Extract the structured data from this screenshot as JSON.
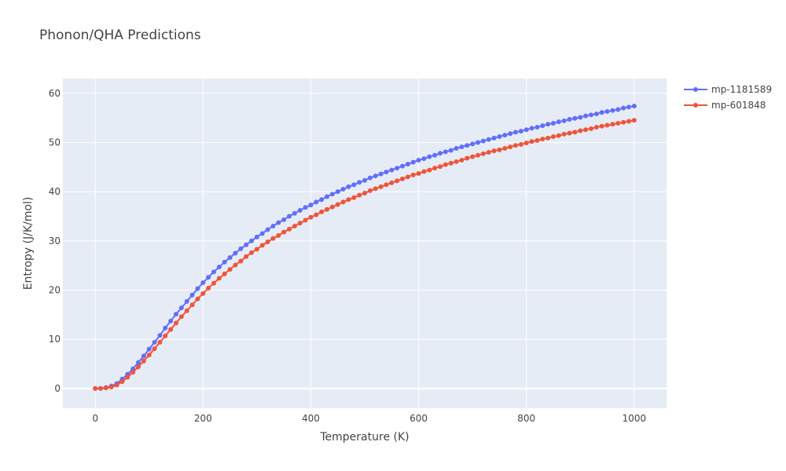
{
  "chart_data": {
    "type": "line",
    "title": "Phonon/QHA Predictions",
    "xlabel": "Temperature (K)",
    "ylabel": "Entropy (J/K/mol)",
    "xlim": [
      -60,
      1060
    ],
    "ylim": [
      -4,
      63
    ],
    "xticks": [
      0,
      200,
      400,
      600,
      800,
      1000
    ],
    "yticks": [
      0,
      10,
      20,
      30,
      40,
      50,
      60
    ],
    "grid": true,
    "legend_position": "top-right",
    "plot_bg": "#E5ECF6",
    "x_start": 0,
    "x_step": 10,
    "series": [
      {
        "name": "mp-1181589",
        "color": "#636EFA",
        "values": [
          0,
          0.02,
          0.2,
          0.5,
          1.0,
          1.9,
          2.9,
          4.0,
          5.3,
          6.6,
          8.0,
          9.4,
          10.8,
          12.3,
          13.7,
          15.1,
          16.4,
          17.7,
          19.0,
          20.3,
          21.5,
          22.6,
          23.7,
          24.7,
          25.7,
          26.6,
          27.5,
          28.4,
          29.2,
          30.0,
          30.8,
          31.5,
          32.3,
          33.0,
          33.7,
          34.3,
          35.0,
          35.6,
          36.2,
          36.8,
          37.3,
          37.9,
          38.4,
          39.0,
          39.5,
          40.0,
          40.5,
          41.0,
          41.4,
          41.9,
          42.3,
          42.8,
          43.2,
          43.6,
          44.0,
          44.4,
          44.8,
          45.2,
          45.6,
          46.0,
          46.4,
          46.7,
          47.1,
          47.4,
          47.8,
          48.1,
          48.4,
          48.8,
          49.1,
          49.4,
          49.7,
          50.0,
          50.3,
          50.6,
          50.9,
          51.2,
          51.5,
          51.8,
          52.1,
          52.3,
          52.6,
          52.9,
          53.1,
          53.4,
          53.7,
          53.9,
          54.2,
          54.4,
          54.7,
          54.9,
          55.1,
          55.4,
          55.6,
          55.8,
          56.1,
          56.3,
          56.5,
          56.7,
          57.0,
          57.2,
          57.4
        ]
      },
      {
        "name": "mp-601848",
        "color": "#EF553B",
        "values": [
          0,
          0.01,
          0.1,
          0.3,
          0.7,
          1.4,
          2.3,
          3.3,
          4.4,
          5.6,
          6.8,
          8.1,
          9.4,
          10.7,
          12.0,
          13.3,
          14.6,
          15.8,
          17.0,
          18.2,
          19.3,
          20.4,
          21.4,
          22.4,
          23.3,
          24.2,
          25.1,
          25.9,
          26.8,
          27.6,
          28.3,
          29.1,
          29.8,
          30.5,
          31.1,
          31.8,
          32.4,
          33.0,
          33.6,
          34.2,
          34.8,
          35.3,
          35.9,
          36.4,
          36.9,
          37.4,
          37.9,
          38.4,
          38.8,
          39.3,
          39.7,
          40.2,
          40.6,
          41.0,
          41.4,
          41.8,
          42.2,
          42.6,
          43.0,
          43.4,
          43.7,
          44.1,
          44.4,
          44.8,
          45.1,
          45.5,
          45.8,
          46.1,
          46.4,
          46.8,
          47.1,
          47.4,
          47.7,
          48.0,
          48.3,
          48.5,
          48.8,
          49.1,
          49.4,
          49.6,
          49.9,
          50.2,
          50.4,
          50.7,
          50.9,
          51.2,
          51.4,
          51.7,
          51.9,
          52.1,
          52.4,
          52.6,
          52.8,
          53.1,
          53.3,
          53.5,
          53.7,
          53.9,
          54.1,
          54.3,
          54.5
        ]
      }
    ]
  }
}
